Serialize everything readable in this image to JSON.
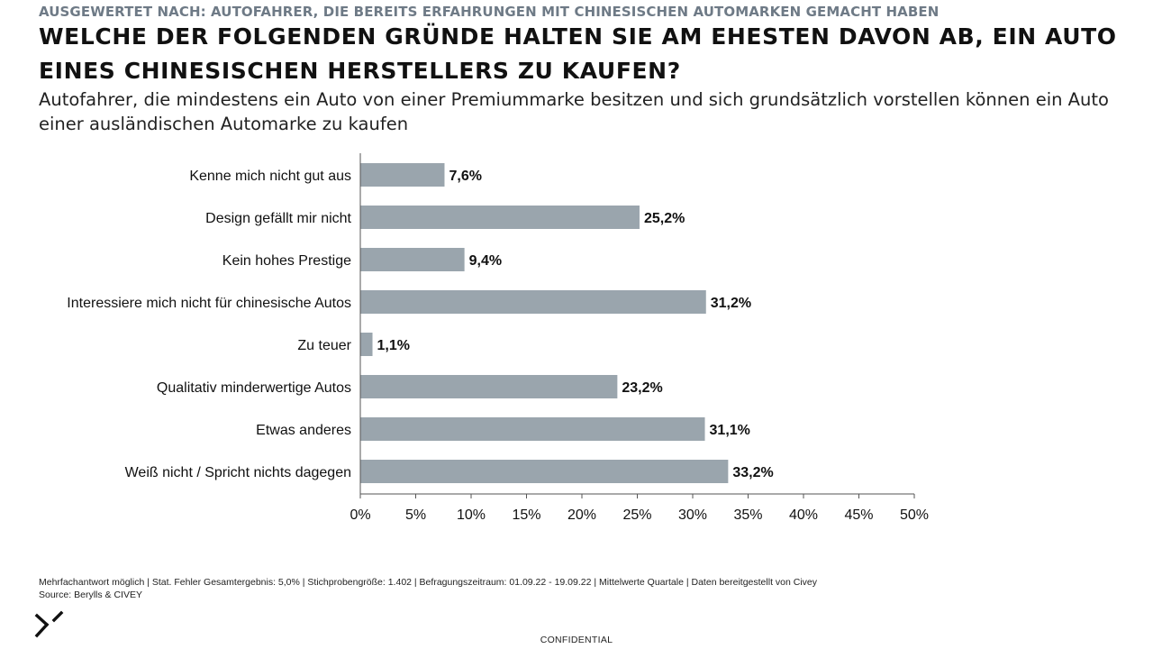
{
  "header": {
    "supertitle": "AUSGEWERTET NACH: AUTOFAHRER, DIE BEREITS ERFAHRUNGEN MIT CHINESISCHEN AUTOMARKEN GEMACHT HABEN",
    "title": "WELCHE DER FOLGENDEN GRÜNDE HALTEN SIE AM EHESTEN DAVON AB, EIN AUTO EINES CHINESISCHEN HERSTELLERS ZU KAUFEN?",
    "subtitle": "Autofahrer, die mindestens ein Auto von einer Premiummarke besitzen und sich grundsätzlich vorstellen können ein Auto einer ausländischen Automarke zu kaufen"
  },
  "chart_data": {
    "type": "bar",
    "orientation": "horizontal",
    "categories": [
      "Kenne mich nicht gut aus",
      "Design gefällt mir nicht",
      "Kein hohes Prestige",
      "Interessiere mich nicht für chinesische Autos",
      "Zu teuer",
      "Qualitativ minderwertige Autos",
      "Etwas anderes",
      "Weiß nicht / Spricht nichts dagegen"
    ],
    "values": [
      7.6,
      25.2,
      9.4,
      31.2,
      1.1,
      23.2,
      31.1,
      33.2
    ],
    "value_labels": [
      "7,6%",
      "25,2%",
      "9,4%",
      "31,2%",
      "1,1%",
      "23,2%",
      "31,1%",
      "33,2%"
    ],
    "xlim": [
      0,
      50
    ],
    "xticks": [
      0,
      5,
      10,
      15,
      20,
      25,
      30,
      35,
      40,
      45,
      50
    ],
    "xtick_labels": [
      "0%",
      "5%",
      "10%",
      "15%",
      "20%",
      "25%",
      "30%",
      "35%",
      "40%",
      "45%",
      "50%"
    ],
    "grid": false,
    "bar_color": "#9aa5ad"
  },
  "footer": {
    "note_line1": "Mehrfachantwort möglich | Stat. Fehler Gesamtergebnis: 5,0% | Stichprobengröße: 1.402 | Befragungszeitraum: 01.09.22 - 19.09.22 | Mittelwerte Quartale | Daten bereitgestellt von Civey",
    "note_line2": "Source: Berylls & CIVEY",
    "confidential": "CONFIDENTIAL",
    "logo_icon": "berylls-logo-icon"
  },
  "colors": {
    "supertitle": "#6e7a86",
    "text": "#111111",
    "axis": "#555555"
  }
}
